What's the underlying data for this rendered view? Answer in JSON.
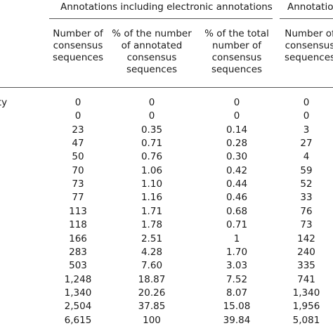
{
  "group_headers": {
    "electronic": "Annotations including electronic annotations",
    "other": "Annotatio"
  },
  "column_headers": [
    "Number of\nconsensus\nsequences",
    "% of the number\nof annotated\nconsensus\nsequences",
    "% of the total\nnumber of\nconsensus\nsequences",
    "Number of\nconsensus\nsequences"
  ],
  "row_label_fragment": "tivity",
  "rows": [
    [
      "0",
      "0",
      "0",
      "0"
    ],
    [
      "0",
      "0",
      "0",
      "0"
    ],
    [
      "23",
      "0.35",
      "0.14",
      "3"
    ],
    [
      "47",
      "0.71",
      "0.28",
      "27"
    ],
    [
      "50",
      "0.76",
      "0.30",
      "4"
    ],
    [
      "70",
      "1.06",
      "0.42",
      "59"
    ],
    [
      "73",
      "1.10",
      "0.44",
      "52"
    ],
    [
      "77",
      "1.16",
      "0.46",
      "33"
    ],
    [
      "113",
      "1.71",
      "0.68",
      "76"
    ],
    [
      "118",
      "1.78",
      "0.71",
      "73"
    ],
    [
      "166",
      "2.51",
      "1",
      "142"
    ],
    [
      "283",
      "4.28",
      "1.70",
      "240"
    ],
    [
      "503",
      "7.60",
      "3.03",
      "335"
    ],
    [
      "1,248",
      "18.87",
      "7.52",
      "741"
    ],
    [
      "1,340",
      "20.26",
      "8.07",
      "1,340"
    ],
    [
      "2,504",
      "37.85",
      "15.08",
      "1,956"
    ],
    [
      "6,615",
      "100",
      "39.84",
      "5,081"
    ]
  ]
}
